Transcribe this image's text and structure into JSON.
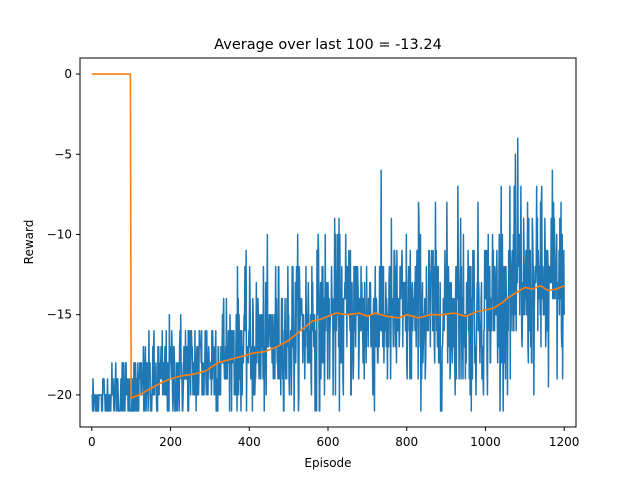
{
  "chart_data": {
    "type": "line",
    "title": "Average over last 100 = -13.24",
    "xlabel": "Episode",
    "ylabel": "Reward",
    "xlim": [
      -30,
      1230
    ],
    "ylim": [
      -22,
      1
    ],
    "x_ticks": [
      0,
      200,
      400,
      600,
      800,
      1000,
      1200
    ],
    "y_ticks": [
      0,
      -5,
      -10,
      -15,
      -20
    ],
    "x_tick_labels": [
      "0",
      "200",
      "400",
      "600",
      "800",
      "1000",
      "1200"
    ],
    "y_tick_labels": [
      "0",
      "−5",
      "−10",
      "−15",
      "−20"
    ],
    "grid": false,
    "series": [
      {
        "color": "#1f77b4",
        "episodes": 1201,
        "trend_points": [
          [
            0,
            -20.3
          ],
          [
            100,
            -19.9
          ],
          [
            200,
            -18.8
          ],
          [
            300,
            -17.9
          ],
          [
            400,
            -17.0
          ],
          [
            500,
            -16.2
          ],
          [
            600,
            -15.2
          ],
          [
            700,
            -15.0
          ],
          [
            800,
            -15.0
          ],
          [
            900,
            -14.9
          ],
          [
            1000,
            -14.6
          ],
          [
            1100,
            -13.4
          ],
          [
            1200,
            -13.2
          ]
        ],
        "spread_points": [
          [
            0,
            0.6
          ],
          [
            100,
            1.3
          ],
          [
            300,
            2.0
          ],
          [
            600,
            2.6
          ],
          [
            1000,
            2.8
          ],
          [
            1200,
            2.9
          ]
        ],
        "spikes": [
          [
            578,
            -21
          ],
          [
            1082,
            -4
          ],
          [
            1040,
            -7
          ],
          [
            1170,
            -6
          ],
          [
            1090,
            -7
          ],
          [
            1140,
            -8
          ],
          [
            930,
            -7
          ],
          [
            830,
            -8
          ],
          [
            1160,
            -19.5
          ]
        ]
      },
      {
        "color": "#ff7f0e",
        "points": [
          [
            0,
            0
          ],
          [
            98,
            0
          ],
          [
            100,
            -20.2
          ],
          [
            120,
            -20.0
          ],
          [
            150,
            -19.6
          ],
          [
            180,
            -19.2
          ],
          [
            200,
            -19.0
          ],
          [
            230,
            -18.8
          ],
          [
            260,
            -18.7
          ],
          [
            290,
            -18.5
          ],
          [
            320,
            -18.0
          ],
          [
            350,
            -17.8
          ],
          [
            380,
            -17.6
          ],
          [
            410,
            -17.4
          ],
          [
            440,
            -17.3
          ],
          [
            470,
            -17.0
          ],
          [
            500,
            -16.6
          ],
          [
            530,
            -16.0
          ],
          [
            560,
            -15.4
          ],
          [
            580,
            -15.3
          ],
          [
            600,
            -15.1
          ],
          [
            620,
            -14.9
          ],
          [
            650,
            -15.0
          ],
          [
            680,
            -14.9
          ],
          [
            700,
            -15.1
          ],
          [
            720,
            -14.9
          ],
          [
            750,
            -15.1
          ],
          [
            780,
            -15.2
          ],
          [
            800,
            -15.0
          ],
          [
            830,
            -15.2
          ],
          [
            860,
            -15.0
          ],
          [
            890,
            -15.0
          ],
          [
            920,
            -14.9
          ],
          [
            950,
            -15.1
          ],
          [
            980,
            -14.8
          ],
          [
            1000,
            -14.7
          ],
          [
            1020,
            -14.6
          ],
          [
            1040,
            -14.3
          ],
          [
            1060,
            -13.9
          ],
          [
            1080,
            -13.6
          ],
          [
            1100,
            -13.3
          ],
          [
            1120,
            -13.4
          ],
          [
            1140,
            -13.2
          ],
          [
            1160,
            -13.5
          ],
          [
            1180,
            -13.4
          ],
          [
            1200,
            -13.2
          ]
        ]
      }
    ]
  }
}
